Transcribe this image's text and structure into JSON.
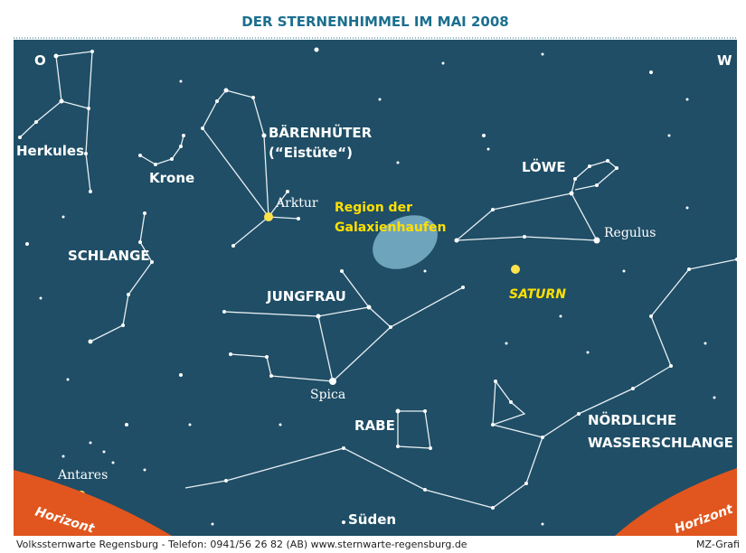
{
  "header": {
    "title": "DER STERNENHIMMEL IM MAI 2008"
  },
  "compass": {
    "east": "O",
    "west": "W",
    "south": "Süden"
  },
  "constellations": {
    "herkules": "Herkules",
    "krone": "Krone",
    "baerenhueter": "BÄRENHÜTER",
    "baerenhueter_nick": "(“Eistüte“)",
    "loewe": "LÖWE",
    "schlange": "SCHLANGE",
    "jungfrau": "JUNGFRAU",
    "rabe": "RABE",
    "wasserschlange_1": "NÖRDLICHE",
    "wasserschlange_2": "WASSERSCHLANGE"
  },
  "stars": {
    "arktur": "Arktur",
    "regulus": "Regulus",
    "spica": "Spica",
    "antares": "Antares"
  },
  "highlights": {
    "region_1": "Region der",
    "region_2": "Galaxienhaufen",
    "planet": "SATURN"
  },
  "horizon": {
    "left": "Horizont",
    "right": "Horizont"
  },
  "footer": {
    "credit": "Volkssternwarte Regensburg - Telefon: 0941/56 26 82 (AB) www.sternwarte-regensburg.de",
    "agency": "MZ-Grafi"
  }
}
